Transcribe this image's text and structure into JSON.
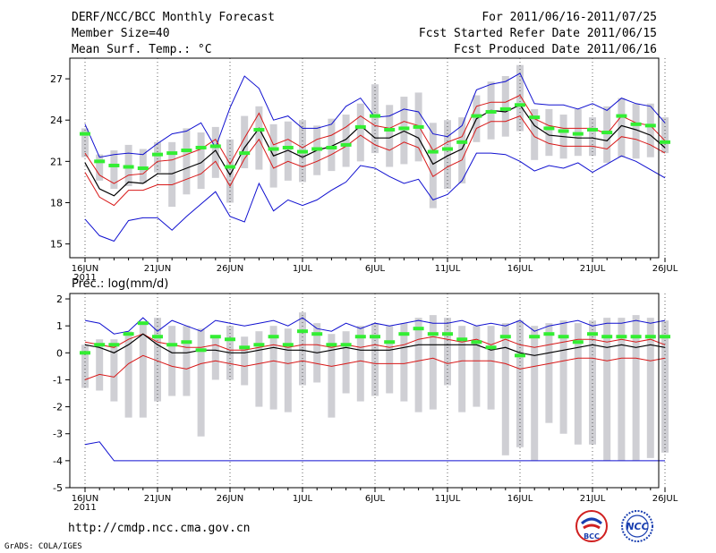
{
  "header": {
    "title": "DERF/NCC/BCC Monthly Forecast",
    "member_size": "Member Size=40",
    "variable": "Mean Surf. Temp.: °C",
    "period": "For 2011/06/16-2011/07/25",
    "started": "Fcst Started Refer Date 2011/06/15",
    "produced": "Fcst Produced Date 2011/06/16"
  },
  "footer": {
    "url": "http://cmdp.ncc.cma.gov.cn",
    "credit": "GrADS: COLA/IGES",
    "logo_bcc": "BCC",
    "logo_ncc": "NCC"
  },
  "colors": {
    "box": "#cfcfd4",
    "whisker": "#1010d0",
    "quartile": "#d81818",
    "median": "#000000",
    "observed": "#33ee33"
  },
  "chart_data": [
    {
      "type": "box",
      "name": "temperature",
      "title": "Mean Surf. Temp.: °C",
      "ylim": [
        14,
        28.5
      ],
      "yticks": [
        15,
        18,
        21,
        24,
        27
      ],
      "xticks": [
        {
          "day": 0,
          "label": "16JUN"
        },
        {
          "day": 5,
          "label": "21JUN"
        },
        {
          "day": 10,
          "label": "26JUN"
        },
        {
          "day": 15,
          "label": "1JUL"
        },
        {
          "day": 20,
          "label": "6JUL"
        },
        {
          "day": 25,
          "label": "11JUL"
        },
        {
          "day": 30,
          "label": "16JUL"
        },
        {
          "day": 35,
          "label": "21JUL"
        },
        {
          "day": 40,
          "label": "26JUL"
        }
      ],
      "year_label": "2011",
      "box_low": [
        21.3,
        19.6,
        19.0,
        19.2,
        19.4,
        20.2,
        17.7,
        18.6,
        19.0,
        19.8,
        18.0,
        20.5,
        20.4,
        19.1,
        19.6,
        19.5,
        20.0,
        20.3,
        20.6,
        21.0,
        21.6,
        20.6,
        20.8,
        21.0,
        17.6,
        19.0,
        19.4,
        22.4,
        22.6,
        22.8,
        23.2,
        21.1,
        21.4,
        21.2,
        21.4,
        21.4,
        20.9,
        21.3,
        21.2,
        21.3,
        21.6
      ],
      "box_high": [
        23.4,
        21.5,
        21.8,
        22.2,
        21.9,
        22.4,
        22.4,
        23.4,
        23.1,
        23.5,
        22.6,
        24.3,
        25.0,
        23.7,
        23.9,
        24.0,
        23.6,
        24.1,
        24.4,
        25.2,
        26.6,
        25.1,
        25.7,
        26.0,
        23.8,
        24.0,
        24.2,
        25.8,
        26.8,
        27.2,
        28.0,
        24.8,
        24.8,
        24.4,
        24.8,
        24.2,
        25.0,
        25.6,
        25.2,
        25.2,
        24.2
      ],
      "whisker_low": [
        16.8,
        15.6,
        15.2,
        16.7,
        16.9,
        16.9,
        16.0,
        17.0,
        17.9,
        18.8,
        17.0,
        16.6,
        19.4,
        17.4,
        18.2,
        17.8,
        18.2,
        18.9,
        19.5,
        20.7,
        20.5,
        19.9,
        19.4,
        19.7,
        18.2,
        18.6,
        19.6,
        21.6,
        21.6,
        21.5,
        21.0,
        20.3,
        20.7,
        20.5,
        20.9,
        20.2,
        20.8,
        21.4,
        21.0,
        20.4,
        19.8
      ],
      "whisker_high": [
        23.7,
        21.3,
        21.5,
        21.6,
        21.5,
        22.3,
        23.0,
        23.2,
        23.8,
        22.0,
        24.9,
        27.2,
        26.3,
        24.0,
        24.3,
        23.4,
        23.4,
        23.7,
        25.0,
        25.6,
        24.2,
        24.3,
        24.8,
        24.6,
        23.0,
        22.8,
        23.6,
        26.2,
        26.6,
        26.8,
        27.4,
        25.2,
        25.1,
        25.1,
        24.8,
        25.2,
        24.7,
        25.6,
        25.2,
        25.0,
        23.8
      ],
      "q_low": [
        20.2,
        18.4,
        17.8,
        18.9,
        18.9,
        19.3,
        19.3,
        19.7,
        20.1,
        21.0,
        19.2,
        21.2,
        22.6,
        20.5,
        21.0,
        20.6,
        21.0,
        21.5,
        22.1,
        22.9,
        22.2,
        21.8,
        22.4,
        22.0,
        19.9,
        20.6,
        21.1,
        23.4,
        23.9,
        23.9,
        24.3,
        22.8,
        22.3,
        22.1,
        22.1,
        22.1,
        21.9,
        22.8,
        22.6,
        22.2,
        21.6
      ],
      "q_high": [
        21.6,
        20.0,
        19.4,
        20.0,
        20.1,
        21.0,
        21.1,
        21.5,
        21.9,
        22.6,
        20.8,
        22.7,
        24.5,
        22.2,
        22.6,
        22.0,
        22.6,
        22.9,
        23.5,
        24.3,
        23.6,
        23.4,
        23.9,
        23.6,
        21.8,
        22.4,
        22.8,
        25.0,
        25.3,
        25.3,
        25.8,
        24.1,
        23.6,
        23.4,
        23.4,
        23.4,
        23.0,
        24.3,
        23.8,
        23.6,
        22.5
      ],
      "median": [
        20.9,
        19.0,
        18.5,
        19.5,
        19.4,
        20.1,
        20.1,
        20.5,
        20.9,
        21.8,
        20.0,
        22.0,
        23.4,
        21.4,
        21.8,
        21.3,
        21.8,
        22.1,
        22.6,
        23.6,
        22.7,
        22.7,
        23.2,
        22.7,
        20.8,
        21.4,
        21.9,
        24.1,
        24.7,
        24.6,
        25.1,
        23.6,
        22.9,
        22.8,
        22.7,
        22.7,
        22.5,
        23.6,
        23.3,
        22.9,
        22.0
      ],
      "observed": [
        23.0,
        21.0,
        20.7,
        20.6,
        20.5,
        21.5,
        21.6,
        21.8,
        22.0,
        22.1,
        20.6,
        21.6,
        23.3,
        21.9,
        22.0,
        21.7,
        21.9,
        22.0,
        22.2,
        23.5,
        24.3,
        23.3,
        23.4,
        23.5,
        21.7,
        21.9,
        22.4,
        24.3,
        24.6,
        24.8,
        25.1,
        24.2,
        23.4,
        23.2,
        23.0,
        23.3,
        23.1,
        24.3,
        23.7,
        23.6,
        22.4
      ]
    },
    {
      "type": "box",
      "name": "precipitation",
      "title": "Prec.: log(mm/d)",
      "ylim": [
        -5,
        2.2
      ],
      "yticks": [
        -5,
        -4,
        -3,
        -2,
        -1,
        0,
        1,
        2
      ],
      "xticks": [
        {
          "day": 0,
          "label": "16JUN"
        },
        {
          "day": 5,
          "label": "21JUN"
        },
        {
          "day": 10,
          "label": "26JUN"
        },
        {
          "day": 15,
          "label": "1JUL"
        },
        {
          "day": 20,
          "label": "6JUL"
        },
        {
          "day": 25,
          "label": "11JUL"
        },
        {
          "day": 30,
          "label": "16JUL"
        },
        {
          "day": 35,
          "label": "21JUL"
        },
        {
          "day": 40,
          "label": "26JUL"
        }
      ],
      "year_label": "2011",
      "box_low": [
        -1.3,
        -1.4,
        -1.8,
        -2.4,
        -2.4,
        -1.8,
        -1.6,
        -1.6,
        -3.1,
        -1.0,
        -1.0,
        -1.2,
        -2.0,
        -2.1,
        -2.2,
        -1.2,
        -1.1,
        -2.4,
        -1.5,
        -1.8,
        -1.6,
        -1.5,
        -1.8,
        -2.2,
        -2.1,
        -1.2,
        -2.2,
        -2.0,
        -2.1,
        -3.8,
        -3.5,
        -4.0,
        -2.6,
        -3.0,
        -3.4,
        -3.4,
        -4.0,
        -4.0,
        -4.0,
        -3.9,
        -3.7
      ],
      "box_high": [
        0.3,
        0.5,
        0.5,
        0.8,
        1.1,
        1.3,
        1.0,
        1.0,
        0.9,
        0.6,
        1.0,
        0.6,
        0.8,
        1.0,
        0.9,
        1.5,
        1.1,
        0.7,
        0.8,
        1.0,
        1.1,
        1.0,
        1.1,
        1.3,
        1.4,
        1.3,
        1.0,
        1.0,
        1.0,
        1.1,
        1.2,
        1.0,
        1.1,
        1.2,
        1.1,
        1.2,
        1.3,
        1.3,
        1.4,
        1.3,
        1.2
      ],
      "whisker_low": [
        -3.4,
        -3.3,
        -4.0,
        -4.0,
        -4.0,
        -4.0,
        -4.0,
        -4.0,
        -4.0,
        -4.0,
        -4.0,
        -4.0,
        -4.0,
        -4.0,
        -4.0,
        -4.0,
        -4.0,
        -4.0,
        -4.0,
        -4.0,
        -4.0,
        -4.0,
        -4.0,
        -4.0,
        -4.0,
        -4.0,
        -4.0,
        -4.0,
        -4.0,
        -4.0,
        -4.0,
        -4.0,
        -4.0,
        -4.0,
        -4.0,
        -4.0,
        -4.0,
        -4.0,
        -4.0,
        -4.0,
        -4.0
      ],
      "whisker_high": [
        1.2,
        1.1,
        0.7,
        0.8,
        1.3,
        0.8,
        1.2,
        1.0,
        0.8,
        1.2,
        1.1,
        1.0,
        1.1,
        1.2,
        1.0,
        1.3,
        0.9,
        0.8,
        1.1,
        0.9,
        1.1,
        1.0,
        1.1,
        1.2,
        1.1,
        1.1,
        1.2,
        1.0,
        1.1,
        1.0,
        1.2,
        0.8,
        1.0,
        1.1,
        1.2,
        1.0,
        1.1,
        1.1,
        1.2,
        1.1,
        1.2
      ],
      "q_low": [
        -1.0,
        -0.8,
        -0.9,
        -0.4,
        -0.1,
        -0.3,
        -0.5,
        -0.6,
        -0.4,
        -0.3,
        -0.4,
        -0.5,
        -0.4,
        -0.3,
        -0.4,
        -0.3,
        -0.4,
        -0.5,
        -0.4,
        -0.3,
        -0.4,
        -0.4,
        -0.4,
        -0.3,
        -0.2,
        -0.4,
        -0.3,
        -0.3,
        -0.3,
        -0.4,
        -0.6,
        -0.5,
        -0.4,
        -0.3,
        -0.2,
        -0.2,
        -0.3,
        -0.2,
        -0.2,
        -0.3,
        -0.2
      ],
      "q_high": [
        0.4,
        0.3,
        0.2,
        0.5,
        0.7,
        0.4,
        0.3,
        0.2,
        0.2,
        0.3,
        0.1,
        0.1,
        0.2,
        0.3,
        0.2,
        0.3,
        0.3,
        0.2,
        0.3,
        0.2,
        0.3,
        0.2,
        0.3,
        0.5,
        0.6,
        0.5,
        0.4,
        0.5,
        0.3,
        0.5,
        0.3,
        0.2,
        0.3,
        0.4,
        0.5,
        0.5,
        0.4,
        0.5,
        0.4,
        0.5,
        0.3
      ],
      "median": [
        0.3,
        0.2,
        0.0,
        0.3,
        0.7,
        0.3,
        0.0,
        0.0,
        0.1,
        0.1,
        0.0,
        0.0,
        0.1,
        0.2,
        0.1,
        0.1,
        0.0,
        0.1,
        0.2,
        0.1,
        0.1,
        0.1,
        0.2,
        0.3,
        0.3,
        0.3,
        0.3,
        0.3,
        0.1,
        0.2,
        0.0,
        -0.1,
        0.0,
        0.1,
        0.2,
        0.3,
        0.2,
        0.3,
        0.2,
        0.3,
        0.2
      ],
      "observed": [
        0.0,
        0.3,
        0.3,
        0.7,
        1.1,
        0.6,
        0.3,
        0.4,
        0.1,
        0.6,
        0.5,
        0.2,
        0.3,
        0.6,
        0.3,
        0.8,
        0.7,
        0.3,
        0.3,
        0.6,
        0.6,
        0.4,
        0.7,
        0.9,
        0.7,
        0.7,
        0.5,
        0.4,
        0.2,
        0.6,
        -0.1,
        0.6,
        0.7,
        0.6,
        0.4,
        0.7,
        0.6,
        0.6,
        0.6,
        0.6,
        0.6
      ]
    }
  ]
}
